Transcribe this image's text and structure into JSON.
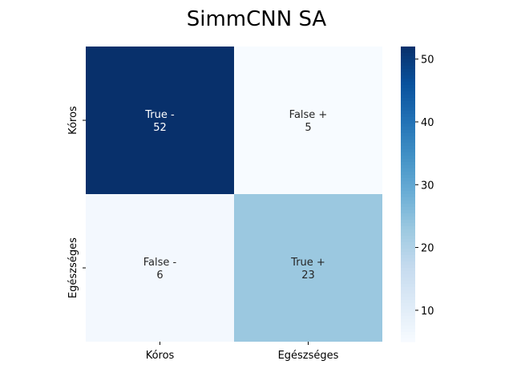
{
  "chart_data": {
    "type": "heatmap",
    "title": "SimmCNN SA",
    "row_labels": [
      "Kóros",
      "Egészséges"
    ],
    "col_labels": [
      "Kóros",
      "Egészséges"
    ],
    "values": [
      [
        52,
        5
      ],
      [
        6,
        23
      ]
    ],
    "cell_labels": [
      [
        "True -",
        "False +"
      ],
      [
        "False -",
        "True +"
      ]
    ],
    "colormap": "Blues",
    "colorbar": {
      "min": 5,
      "max": 52,
      "ticks": [
        10,
        20,
        30,
        40,
        50
      ]
    }
  }
}
